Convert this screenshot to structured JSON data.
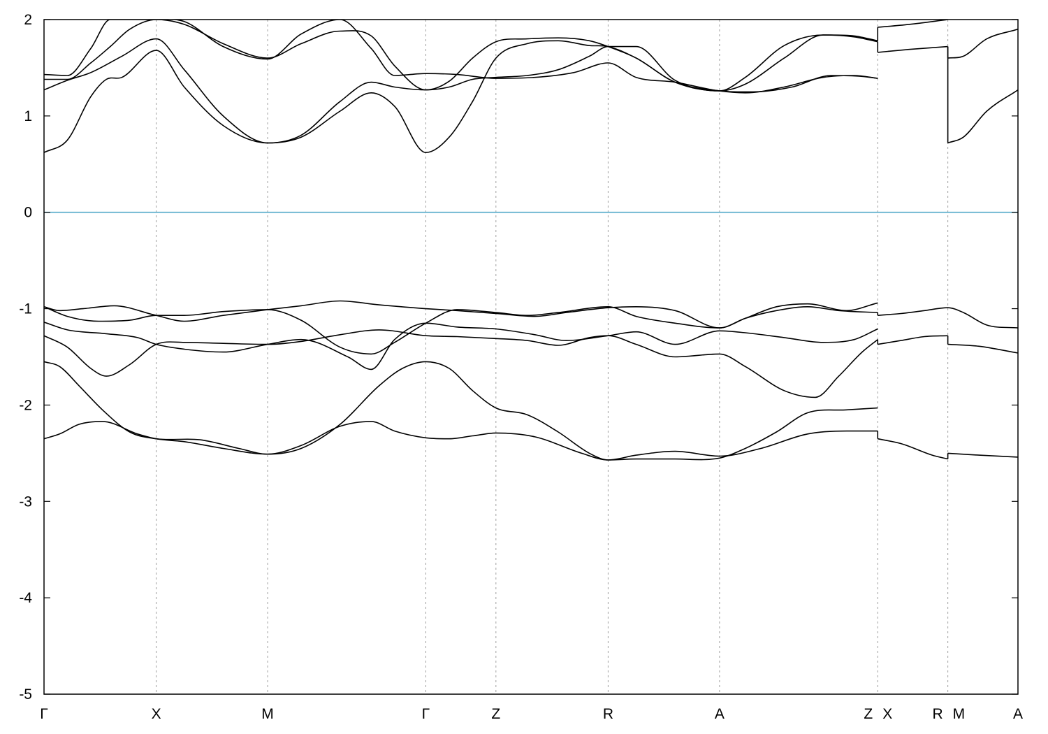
{
  "chart_data": {
    "type": "line",
    "title": "",
    "xlabel": "",
    "ylabel": "",
    "xlim": [
      0,
      12.5
    ],
    "ylim": [
      -5,
      2
    ],
    "yticks": [
      -5,
      -4,
      -3,
      -2,
      -1,
      0,
      1,
      2
    ],
    "grid": "dashed vertical lines at high-symmetry points",
    "reference_line": {
      "y": 0,
      "color": "#52a9c9"
    },
    "kpoints": [
      {
        "label": "Γ",
        "x": 0
      },
      {
        "label": "X",
        "x": 1.44
      },
      {
        "label": "M",
        "x": 2.87
      },
      {
        "label": "Γ",
        "x": 4.9
      },
      {
        "label": "Z",
        "x": 5.8
      },
      {
        "label": "R",
        "x": 7.24
      },
      {
        "label": "A",
        "x": 8.67
      },
      {
        "label": "Z",
        "x": 10.7
      },
      {
        "label": "X",
        "x": 10.7
      },
      {
        "label": "R",
        "x": 11.6
      },
      {
        "label": "M",
        "x": 11.6
      },
      {
        "label": "A",
        "x": 12.5
      }
    ],
    "series": [
      {
        "x": [
          0,
          0.2,
          0.45,
          0.75,
          1.2,
          1.44,
          1.8,
          2.3,
          2.87,
          3.3,
          3.8,
          4.2,
          4.5,
          4.9,
          5.2,
          5.5,
          5.8,
          6.3,
          6.9,
          7.24,
          7.6,
          8.1,
          8.67,
          9.2,
          9.8,
          10.3,
          10.7
        ],
        "y": [
          -2.35,
          -2.3,
          -2.2,
          -2.17,
          -2.3,
          -2.35,
          -2.38,
          -2.45,
          -2.51,
          -2.42,
          -2.22,
          -2.17,
          -2.27,
          -2.34,
          -2.35,
          -2.32,
          -2.29,
          -2.33,
          -2.5,
          -2.57,
          -2.52,
          -2.48,
          -2.53,
          -2.45,
          -2.3,
          -2.27,
          -2.27
        ]
      },
      {
        "x": [
          0,
          0.2,
          0.45,
          0.75,
          1.1,
          1.44,
          2.0,
          2.5,
          2.87,
          3.3,
          3.8,
          4.3,
          4.6,
          4.9,
          5.2,
          5.5,
          5.8,
          6.2,
          6.6,
          7.0,
          7.24,
          7.6,
          8.1,
          8.67,
          9.0,
          9.4,
          9.8,
          10.3,
          10.7
        ],
        "y": [
          -1.55,
          -1.6,
          -1.8,
          -2.05,
          -2.28,
          -2.35,
          -2.36,
          -2.45,
          -2.51,
          -2.45,
          -2.2,
          -1.8,
          -1.62,
          -1.55,
          -1.62,
          -1.85,
          -2.03,
          -2.1,
          -2.28,
          -2.5,
          -2.57,
          -2.56,
          -2.56,
          -2.55,
          -2.45,
          -2.28,
          -2.08,
          -2.05,
          -2.03
        ]
      },
      {
        "x": [
          0,
          0.3,
          0.6,
          0.8,
          1.1,
          1.44,
          1.8,
          2.3,
          2.87,
          3.3,
          3.8,
          4.3,
          4.9,
          5.3,
          5.8,
          6.2,
          6.6,
          7.0,
          7.24,
          7.6,
          8.1,
          8.67,
          9.0,
          9.5,
          9.9,
          10.2,
          10.5,
          10.7
        ],
        "y": [
          -1.28,
          -1.4,
          -1.62,
          -1.7,
          -1.58,
          -1.37,
          -1.35,
          -1.36,
          -1.37,
          -1.34,
          -1.27,
          -1.22,
          -1.28,
          -1.29,
          -1.31,
          -1.33,
          -1.38,
          -1.3,
          -1.28,
          -1.37,
          -1.5,
          -1.47,
          -1.6,
          -1.85,
          -1.92,
          -1.7,
          -1.45,
          -1.32
        ]
      },
      {
        "x": [
          0,
          0.3,
          0.8,
          1.2,
          1.44,
          1.8,
          2.3,
          2.87,
          3.3,
          3.9,
          4.2,
          4.5,
          4.9,
          5.3,
          5.8,
          6.3,
          6.7,
          7.24,
          7.6,
          8.1,
          8.67,
          9.0,
          9.5,
          10.0,
          10.4,
          10.7
        ],
        "y": [
          -1.14,
          -1.22,
          -1.26,
          -1.3,
          -1.37,
          -1.42,
          -1.45,
          -1.37,
          -1.32,
          -1.5,
          -1.63,
          -1.32,
          -1.15,
          -1.19,
          -1.21,
          -1.27,
          -1.33,
          -1.28,
          -1.24,
          -1.37,
          -1.23,
          -1.25,
          -1.3,
          -1.35,
          -1.32,
          -1.21
        ]
      },
      {
        "x": [
          0,
          0.3,
          0.7,
          1.1,
          1.44,
          1.8,
          2.3,
          2.87,
          3.3,
          3.8,
          4.2,
          4.5,
          4.9,
          5.3,
          5.8,
          6.2,
          6.6,
          7.24,
          7.6,
          8.1,
          8.67,
          9.0,
          9.4,
          9.8,
          10.3,
          10.7
        ],
        "y": [
          -0.98,
          -1.08,
          -1.13,
          -1.12,
          -1.07,
          -1.07,
          -1.03,
          -1.01,
          -1.12,
          -1.4,
          -1.47,
          -1.35,
          -1.15,
          -1.01,
          -1.04,
          -1.07,
          -1.04,
          -0.98,
          -1.08,
          -1.15,
          -1.2,
          -1.1,
          -0.98,
          -0.95,
          -1.02,
          -0.94
        ]
      },
      {
        "x": [
          0,
          0.2,
          0.5,
          0.9,
          1.44,
          1.8,
          2.3,
          2.87,
          3.3,
          3.8,
          4.3,
          4.9,
          5.3,
          5.8,
          6.3,
          6.7,
          7.24,
          7.6,
          8.1,
          8.67,
          9.0,
          9.4,
          9.8,
          10.2,
          10.7
        ],
        "y": [
          -0.98,
          -1.02,
          -1.0,
          -0.97,
          -1.07,
          -1.13,
          -1.07,
          -1.01,
          -0.97,
          -0.92,
          -0.96,
          -1.0,
          -1.02,
          -1.05,
          -1.08,
          -1.04,
          -0.99,
          -0.98,
          -1.02,
          -1.2,
          -1.1,
          -1.02,
          -0.98,
          -1.02,
          -1.04
        ]
      },
      {
        "x": [
          0,
          0.3,
          0.6,
          0.8,
          1.0,
          1.44,
          1.8,
          2.3,
          2.87,
          3.3,
          3.8,
          4.2,
          4.5,
          4.9,
          5.2,
          5.5,
          5.8,
          6.2,
          6.6,
          7.0,
          7.24,
          7.6,
          8.1,
          8.67,
          9.0,
          9.5,
          10.0,
          10.4,
          10.7
        ],
        "y": [
          0.62,
          0.75,
          1.2,
          1.38,
          1.4,
          1.68,
          1.3,
          0.9,
          0.72,
          0.78,
          1.05,
          1.24,
          1.1,
          0.62,
          0.78,
          1.15,
          1.6,
          1.75,
          1.78,
          1.73,
          1.72,
          1.6,
          1.35,
          1.26,
          1.24,
          1.3,
          1.4,
          1.42,
          1.39
        ]
      },
      {
        "x": [
          0,
          0.3,
          0.6,
          1.0,
          1.44,
          1.8,
          2.3,
          2.87,
          3.3,
          3.8,
          4.2,
          4.5,
          4.9,
          5.2,
          5.5,
          5.8,
          6.2,
          6.6,
          7.0,
          7.24,
          7.6,
          8.1,
          8.67,
          9.0,
          9.5,
          10.0,
          10.4,
          10.7
        ],
        "y": [
          1.27,
          1.37,
          1.45,
          1.62,
          1.8,
          1.48,
          1.0,
          0.72,
          0.8,
          1.15,
          1.35,
          1.3,
          1.27,
          1.36,
          1.6,
          1.77,
          1.8,
          1.81,
          1.78,
          1.72,
          1.6,
          1.35,
          1.26,
          1.33,
          1.6,
          1.84,
          1.82,
          1.77
        ]
      },
      {
        "x": [
          0,
          0.3,
          0.6,
          0.85,
          1.1,
          1.44,
          1.8,
          2.3,
          2.87,
          3.3,
          3.8,
          4.2,
          4.5,
          4.9,
          5.2,
          5.5,
          5.8,
          6.2,
          6.6,
          7.0,
          7.24,
          7.6,
          8.1,
          8.67,
          9.0,
          9.5,
          10.0,
          10.4,
          10.7
        ],
        "y": [
          1.38,
          1.38,
          1.55,
          1.72,
          1.9,
          2.0,
          1.95,
          1.75,
          1.6,
          1.75,
          1.88,
          1.83,
          1.52,
          1.27,
          1.3,
          1.38,
          1.4,
          1.42,
          1.48,
          1.62,
          1.72,
          1.72,
          1.37,
          1.26,
          1.4,
          1.73,
          1.84,
          1.83,
          1.78
        ]
      },
      {
        "x": [
          0,
          0.3,
          0.6,
          0.85,
          1.1,
          1.44,
          1.8,
          2.3,
          2.87,
          3.3,
          3.8,
          4.2,
          4.5,
          4.9,
          5.3,
          5.8,
          6.3,
          6.8,
          7.24,
          7.6,
          8.1,
          8.67,
          9.1,
          9.6,
          10.1,
          10.5,
          10.7
        ],
        "y": [
          1.43,
          1.42,
          1.7,
          2.0,
          2.0,
          2.0,
          1.98,
          1.72,
          1.59,
          1.85,
          2.0,
          1.7,
          1.42,
          1.44,
          1.43,
          1.39,
          1.4,
          1.45,
          1.55,
          1.4,
          1.35,
          1.26,
          1.25,
          1.3,
          1.42,
          1.41,
          1.39
        ]
      },
      {
        "x": [
          10.7,
          11.0,
          11.4,
          11.6
        ],
        "y": [
          -2.35,
          -2.4,
          -2.52,
          -2.56
        ]
      },
      {
        "x": [
          11.6,
          12.0,
          12.5
        ],
        "y": [
          -2.5,
          -2.52,
          -2.54
        ]
      },
      {
        "x": [
          10.7,
          11.0,
          11.3,
          11.6
        ],
        "y": [
          -1.37,
          -1.33,
          -1.29,
          -1.28
        ]
      },
      {
        "x": [
          11.6,
          12.0,
          12.5
        ],
        "y": [
          -1.37,
          -1.39,
          -1.46
        ]
      },
      {
        "x": [
          10.7,
          11.0,
          11.3,
          11.6,
          11.8,
          12.1,
          12.5
        ],
        "y": [
          -1.07,
          -1.05,
          -1.02,
          -0.99,
          -1.04,
          -1.17,
          -1.2
        ]
      },
      {
        "x": [
          10.7,
          11.1,
          11.6
        ],
        "y": [
          1.66,
          1.69,
          1.72
        ]
      },
      {
        "x": [
          10.7,
          11.1,
          11.6
        ],
        "y": [
          1.92,
          1.95,
          2.0
        ]
      },
      {
        "x": [
          11.6,
          11.8,
          12.1,
          12.5
        ],
        "y": [
          0.72,
          0.78,
          1.05,
          1.27
        ]
      },
      {
        "x": [
          11.6,
          11.8,
          12.1,
          12.5
        ],
        "y": [
          1.6,
          1.62,
          1.8,
          1.9
        ]
      }
    ]
  }
}
